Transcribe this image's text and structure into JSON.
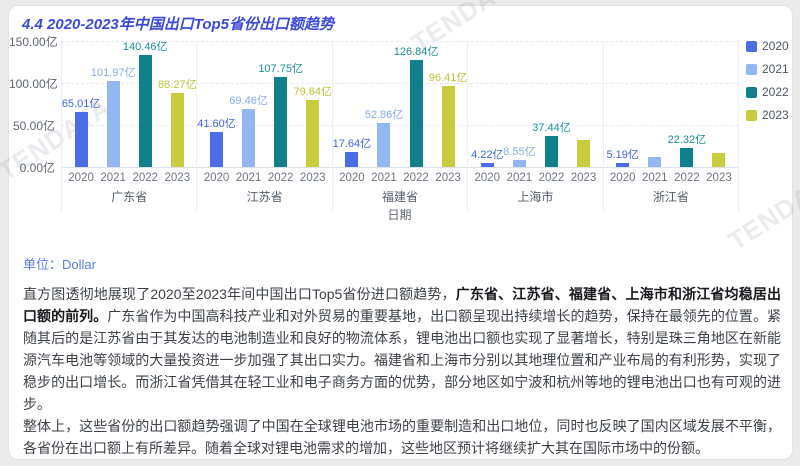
{
  "page": {
    "title": "4.4 2020-2023年中国出口Top5省份出口额趋势",
    "unit_label": "单位：Dollar",
    "watermark": "TENDATA"
  },
  "chart_data": {
    "type": "bar",
    "title": "4.4 2020-2023年中国出口Top5省份出口额趋势",
    "xlabel": "日期",
    "ylabel": "",
    "unit": "亿",
    "ylim": [
      0,
      150
    ],
    "grid": "horizontal-dashed",
    "legend_position": "right",
    "y_ticks": [
      {
        "label": "150.00亿",
        "value": 150
      },
      {
        "label": "100.00亿",
        "value": 100
      },
      {
        "label": "50.00亿",
        "value": 50
      },
      {
        "label": "0.00亿",
        "value": 0
      }
    ],
    "categories": [
      "广东省",
      "江苏省",
      "福建省",
      "上海市",
      "浙江省"
    ],
    "series": [
      {
        "name": "2020",
        "color": "#4b6ee8",
        "label_color": "#3f66e2",
        "values": [
          65.01,
          41.6,
          17.64,
          4.22,
          5.19
        ],
        "labels": [
          "65.01亿",
          "41.60亿",
          "17.64亿",
          "4.22亿",
          "5.19亿"
        ]
      },
      {
        "name": "2021",
        "color": "#92b7f3",
        "label_color": "#85abef",
        "values": [
          101.97,
          69.46,
          52.86,
          8.55,
          11.5
        ],
        "labels": [
          "101.97亿",
          "69.46亿",
          "52.86亿",
          "8.55亿",
          ""
        ]
      },
      {
        "name": "2022",
        "color": "#12808c",
        "label_color": "#1b8f99",
        "values": [
          140.46,
          107.75,
          126.84,
          37.44,
          22.32
        ],
        "labels": [
          "140.46亿",
          "107.75亿",
          "126.84亿",
          "37.44亿",
          "22.32亿"
        ]
      },
      {
        "name": "2023",
        "color": "#c7cc3c",
        "label_color": "#bcc237",
        "values": [
          88.27,
          79.64,
          96.41,
          32.5,
          16.5
        ],
        "labels": [
          "88.27亿",
          "79.64亿",
          "96.41亿",
          "",
          ""
        ]
      }
    ]
  },
  "analysis": {
    "p1_intro": "直方图透彻地展现了2020至2023年间中国出口Top5省份进口额趋势，",
    "p1_bold": "广东省、江苏省、福建省、上海市和浙江省均稳居出口额的前列。",
    "p1_rest": "广东省作为中国高科技产业和对外贸易的重要基地，出口额呈现出持续增长的趋势，保持在最领先的位置。紧随其后的是江苏省由于其发达的电池制造业和良好的物流体系，锂电池出口额也实现了显著增长，特别是珠三角地区在新能源汽车电池等领域的大量投资进一步加强了其出口实力。福建省和上海市分别以其地理位置和产业布局的有利形势，实现了稳步的出口增长。而浙江省凭借其在轻工业和电子商务方面的优势，部分地区如宁波和杭州等地的锂电池出口也有可观的进步。",
    "p2": "整体上，这些省份的出口额趋势强调了中国在全球锂电池市场的重要制造和出口地位，同时也反映了国内区域发展不平衡，各省份在出口额上有所差异。随着全球对锂电池需求的增加，这些地区预计将继续扩大其在国际市场中的份额。"
  }
}
